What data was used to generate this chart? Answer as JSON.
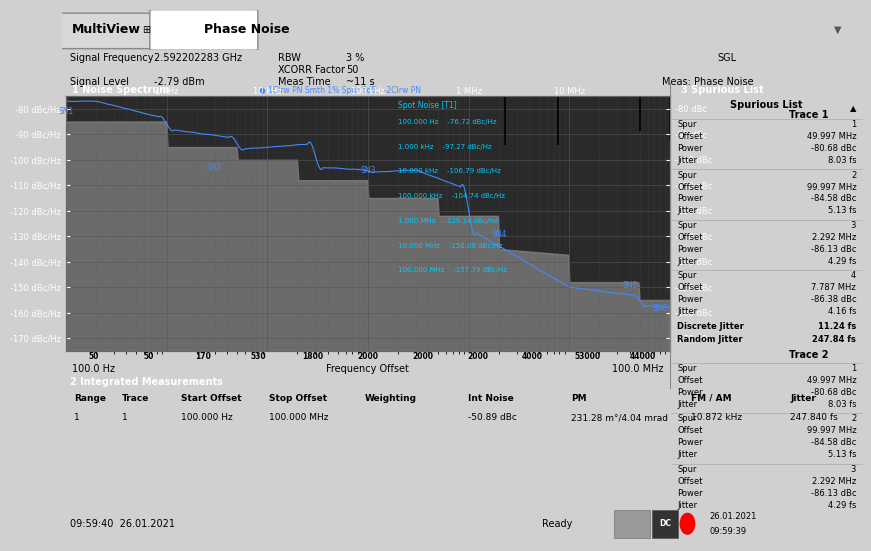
{
  "title_tab": "Phase Noise",
  "app_name": "MultiView",
  "signal_frequency": "2.592202283 GHz",
  "signal_level": "-2.79 dBm",
  "rbw": "3 %",
  "xcorr_factor": "50",
  "meas_time": "~11 s",
  "sgl_text": "SGL",
  "meas_label": "Meas: Phase Noise",
  "panel1_title": "1 Noise Spectrum",
  "panel3_title": "3 Spurious List",
  "panel2_title": "2 Integrated Measurements",
  "trace_label": "1Clrw PN Smth 1% Spur 6dB   -2Clrw PN",
  "spot_noise_title": "Spot Noise [T1]",
  "spot_noise_data": [
    [
      "100.000 Hz",
      "-76.72 dBc/Hz"
    ],
    [
      "1.000 kHz",
      "-97.27 dBc/Hz"
    ],
    [
      "10.000 kHz",
      "-106.79 dBc/Hz"
    ],
    [
      "100.000 kHz",
      "-104.74 dBc/Hz"
    ],
    [
      "1.000 MHz",
      "-129.14 dBc/Hz"
    ],
    [
      "10.000 MHz",
      "-150.08 dBc/Hz"
    ],
    [
      "100.000 MHz",
      "-157.79 dBc/Hz"
    ]
  ],
  "ylim": [
    -175,
    -75
  ],
  "yticks": [
    -80,
    -90,
    -100,
    -110,
    -120,
    -130,
    -140,
    -150,
    -160,
    -170
  ],
  "xlabel": "Frequency Offset",
  "xstart_label": "100.0 Hz",
  "xend_label": "100.0 MHz",
  "freq_axis_labels": [
    "1 kHz",
    "10 kHz",
    "100 kHz",
    "1 MHz",
    "10 MHz"
  ],
  "bg_color": "#d0d0d0",
  "plot_bg_color": "#2a2a2a",
  "trace_color": "#4488ff",
  "fill_color": "#888888",
  "grid_color": "#555555",
  "header_bg": "#e8e8e8",
  "green_bar_color": "#00cc00",
  "status_bar_color": "#c8c8c8",
  "spurious_list": {
    "trace1": [
      {
        "spur": 1,
        "offset": "49.997 MHz",
        "power": "-80.68 dBc",
        "jitter": "8.03 fs"
      },
      {
        "spur": 2,
        "offset": "99.997 MHz",
        "power": "-84.58 dBc",
        "jitter": "5.13 fs"
      },
      {
        "spur": 3,
        "offset": "2.292 MHz",
        "power": "-86.13 dBc",
        "jitter": "4.29 fs"
      },
      {
        "spur": 4,
        "offset": "7.787 MHz",
        "power": "-86.38 dBc",
        "jitter": "4.16 fs"
      }
    ],
    "discrete_jitter": "11.24 fs",
    "random_jitter": "247.84 fs",
    "trace2": [
      {
        "spur": 1,
        "offset": "49.997 MHz",
        "power": "-80.68 dBc",
        "jitter": "8.03 fs"
      },
      {
        "spur": 2,
        "offset": "99.997 MHz",
        "power": "-84.58 dBc",
        "jitter": "5.13 fs"
      },
      {
        "spur": 3,
        "offset": "2.292 MHz",
        "power": "-86.13 dBc",
        "jitter": "4.29 fs"
      }
    ]
  },
  "integrated_measurements": {
    "range": 1,
    "trace": 1,
    "start_offset": "100.000 Hz",
    "stop_offset": "100.000 MHz",
    "weighting": "",
    "int_noise": "-50.89 dBc",
    "pm": "231.28 m°/4.04 mrad",
    "fm_am": "10.872 kHz",
    "jitter": "247.840 fs"
  },
  "timestamp": "09:59:40  26.01.2021",
  "green_bar_numbers": [
    "50",
    "50",
    "170",
    "530",
    "1800",
    "2000",
    "2000",
    "2000",
    "4000",
    "53000",
    "44000"
  ],
  "sn_labels": [
    "SN1",
    "SN2",
    "SN3",
    "SN4",
    "SN5",
    "SN6"
  ],
  "sn_positions_x": [
    100,
    3000,
    100000,
    2000000,
    40000000,
    80000000
  ],
  "sn_positions_y": [
    -83,
    -105,
    -106,
    -131,
    -151,
    -160
  ]
}
